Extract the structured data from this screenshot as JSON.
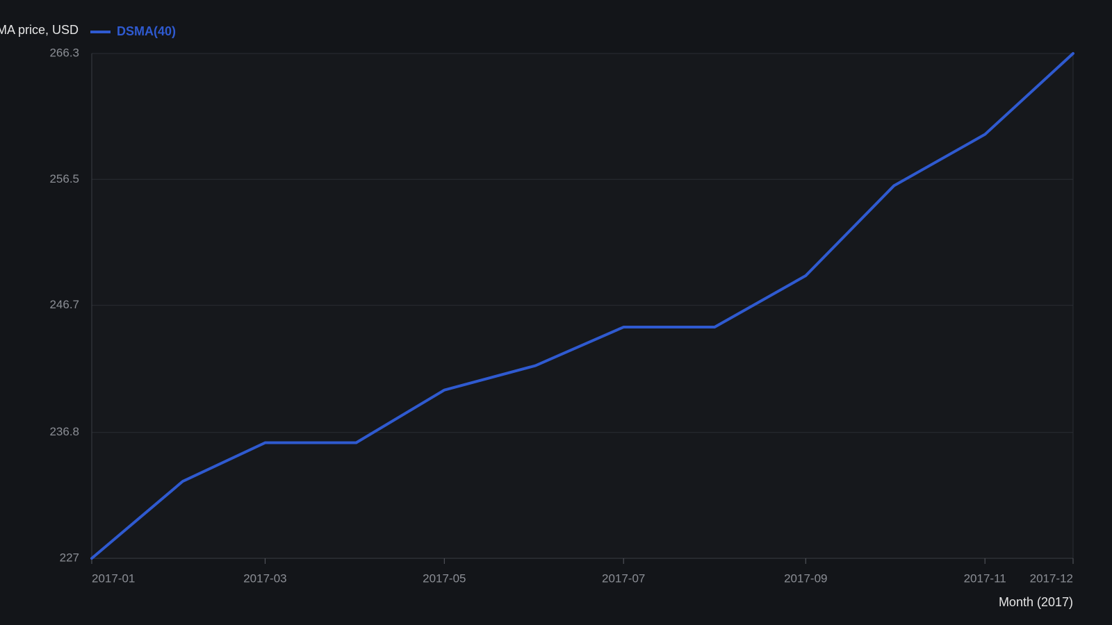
{
  "chart_data": {
    "type": "line",
    "y_label": "DSMA price, USD",
    "x_label": "Month (2017)",
    "x": [
      "2017-01",
      "2017-02",
      "2017-03",
      "2017-04",
      "2017-05",
      "2017-06",
      "2017-07",
      "2017-08",
      "2017-09",
      "2017-10",
      "2017-11",
      "2017-12"
    ],
    "series": [
      {
        "name": "DSMA(40)",
        "color": "#2f5ad0",
        "values": [
          227.0,
          233.0,
          236.0,
          236.0,
          240.1,
          242.0,
          245.0,
          245.0,
          249.0,
          256.0,
          260.0,
          266.3
        ]
      }
    ],
    "xlim": [
      "2017-01",
      "2017-12"
    ],
    "xticks": [
      "2017-01",
      "2017-03",
      "2017-05",
      "2017-07",
      "2017-09",
      "2017-11",
      "2017-12"
    ],
    "ylim": [
      227,
      266.3
    ],
    "yticks": [
      227,
      236.8,
      246.7,
      256.5,
      266.3
    ],
    "grid": true
  }
}
